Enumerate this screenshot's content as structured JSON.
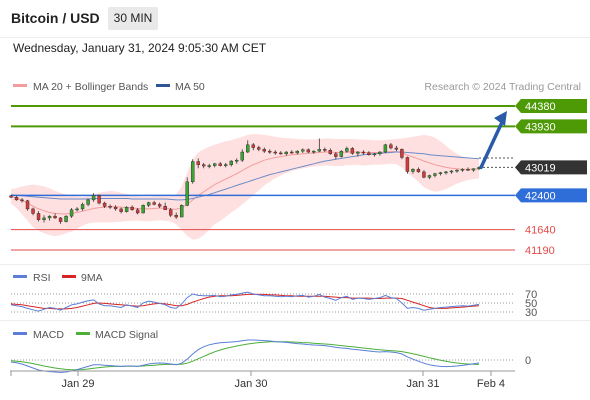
{
  "header": {
    "title": "Bitcoin / USD",
    "timeframe": "30 MIN",
    "datetime": "Wednesday, January 31, 2024 9:05:30 AM CET"
  },
  "legend": {
    "ma20": "MA 20 + Bollinger Bands",
    "ma50": "MA 50",
    "credit": "Research © 2024 Trading Central",
    "rsi": "RSI",
    "rsi_ma": "9MA",
    "macd": "MACD",
    "macd_signal": "MACD Signal"
  },
  "colors": {
    "resistance": "#4e9a06",
    "support": "#2f6ed8",
    "lower": "#e34a4a",
    "bb": "#ffd6d6",
    "ma20": "#f29c9c",
    "ma50": "#6b8cc8",
    "rsi": "#5b7fd6",
    "rsi_ma": "#d72424",
    "macd": "#5b7fd6",
    "macd_signal": "#4caf37",
    "current": "#333333",
    "arrow": "#2a5aa8"
  },
  "chart_data": [
    {
      "type": "candlestick",
      "x_ticks": [
        "Jan 29",
        "Jan 30",
        "Jan 31",
        "Feb 4"
      ],
      "ylim": [
        40960,
        44530
      ],
      "candles": [
        [
          42390,
          42410,
          42340,
          42360
        ],
        [
          42360,
          42390,
          42280,
          42300
        ],
        [
          42300,
          42340,
          42240,
          42280
        ],
        [
          42280,
          42300,
          42060,
          42100
        ],
        [
          42100,
          42130,
          41960,
          42000
        ],
        [
          42000,
          42050,
          41820,
          41860
        ],
        [
          41860,
          41960,
          41800,
          41900
        ],
        [
          41900,
          41960,
          41840,
          41940
        ],
        [
          41940,
          42000,
          41880,
          41900
        ],
        [
          41900,
          41920,
          41770,
          41820
        ],
        [
          41820,
          41960,
          41800,
          41940
        ],
        [
          41940,
          42120,
          41900,
          42080
        ],
        [
          42080,
          42140,
          42040,
          42100
        ],
        [
          42100,
          42240,
          42060,
          42200
        ],
        [
          42200,
          42330,
          42160,
          42300
        ],
        [
          42300,
          42450,
          42260,
          42400
        ],
        [
          42400,
          42420,
          42200,
          42230
        ],
        [
          42230,
          42260,
          42120,
          42160
        ],
        [
          42160,
          42200,
          42100,
          42140
        ],
        [
          42140,
          42180,
          42060,
          42100
        ],
        [
          42100,
          42130,
          42000,
          42040
        ],
        [
          42040,
          42160,
          42020,
          42140
        ],
        [
          42140,
          42180,
          42060,
          42080
        ],
        [
          42080,
          42120,
          41980,
          42010
        ],
        [
          42010,
          42200,
          42000,
          42180
        ],
        [
          42180,
          42260,
          42140,
          42240
        ],
        [
          42240,
          42280,
          42180,
          42200
        ],
        [
          42200,
          42240,
          42120,
          42160
        ],
        [
          42160,
          42240,
          42100,
          42080
        ],
        [
          42080,
          42120,
          41920,
          41960
        ],
        [
          41960,
          42020,
          41880,
          41920
        ],
        [
          41920,
          42200,
          41920,
          42180
        ],
        [
          42180,
          42800,
          42160,
          42700
        ],
        [
          42700,
          43200,
          42660,
          43150
        ],
        [
          43150,
          43220,
          43000,
          43080
        ],
        [
          43080,
          43120,
          43000,
          43050
        ],
        [
          43050,
          43100,
          43000,
          43060
        ],
        [
          43060,
          43120,
          43020,
          43100
        ],
        [
          43100,
          43140,
          43040,
          43060
        ],
        [
          43060,
          43120,
          43020,
          43080
        ],
        [
          43080,
          43180,
          43040,
          43160
        ],
        [
          43160,
          43220,
          43100,
          43180
        ],
        [
          43180,
          43420,
          43140,
          43360
        ],
        [
          43360,
          43620,
          43340,
          43520
        ],
        [
          43520,
          43560,
          43400,
          43460
        ],
        [
          43460,
          43500,
          43380,
          43420
        ],
        [
          43420,
          43460,
          43340,
          43380
        ],
        [
          43380,
          43420,
          43320,
          43360
        ],
        [
          43360,
          43400,
          43300,
          43340
        ],
        [
          43340,
          43380,
          43300,
          43320
        ],
        [
          43320,
          43380,
          43280,
          43360
        ],
        [
          43360,
          43400,
          43320,
          43340
        ],
        [
          43340,
          43400,
          43310,
          43380
        ],
        [
          43380,
          43440,
          43340,
          43410
        ],
        [
          43410,
          43440,
          43340,
          43360
        ],
        [
          43360,
          43400,
          43320,
          43380
        ],
        [
          43380,
          43660,
          43360,
          43420
        ],
        [
          43420,
          43460,
          43360,
          43400
        ],
        [
          43400,
          43440,
          43300,
          43320
        ],
        [
          43320,
          43360,
          43200,
          43260
        ],
        [
          43260,
          43400,
          43240,
          43380
        ],
        [
          43380,
          43480,
          43340,
          43440
        ],
        [
          43440,
          43470,
          43300,
          43330
        ],
        [
          43330,
          43380,
          43260,
          43360
        ],
        [
          43360,
          43400,
          43300,
          43340
        ],
        [
          43340,
          43380,
          43280,
          43300
        ],
        [
          43300,
          43340,
          43260,
          43320
        ],
        [
          43320,
          43380,
          43280,
          43360
        ],
        [
          43360,
          43540,
          43340,
          43520
        ],
        [
          43520,
          43560,
          43420,
          43450
        ],
        [
          43450,
          43500,
          43380,
          43420
        ],
        [
          43420,
          43440,
          43200,
          43240
        ],
        [
          43240,
          43260,
          42880,
          42930
        ],
        [
          42930,
          43000,
          42880,
          42980
        ],
        [
          42980,
          43020,
          42900,
          42920
        ],
        [
          42920,
          42960,
          42780,
          42800
        ],
        [
          42800,
          42860,
          42760,
          42840
        ],
        [
          42840,
          42900,
          42800,
          42880
        ],
        [
          42880,
          42920,
          42840,
          42900
        ],
        [
          42900,
          42940,
          42860,
          42920
        ],
        [
          42920,
          42960,
          42880,
          42940
        ],
        [
          42940,
          42980,
          42900,
          42960
        ],
        [
          42960,
          43000,
          42920,
          42980
        ],
        [
          42980,
          43020,
          42940,
          42960
        ],
        [
          42960,
          43000,
          42920,
          42990
        ],
        [
          42990,
          43040,
          42960,
          43019
        ]
      ],
      "ma20": [
        42380,
        42340,
        42290,
        42230,
        42160,
        42100,
        42060,
        42020,
        42000,
        41990,
        41990,
        42000,
        42020,
        42050,
        42080,
        42110,
        42130,
        42140,
        42150,
        42150,
        42140,
        42130,
        42120,
        42110,
        42100,
        42100,
        42110,
        42120,
        42110,
        42100,
        42090,
        42130,
        42200,
        42300,
        42400,
        42480,
        42560,
        42640,
        42700,
        42760,
        42820,
        42880,
        42950,
        43020,
        43080,
        43130,
        43180,
        43210,
        43240,
        43260,
        43280,
        43300,
        43310,
        43320,
        43330,
        43340,
        43350,
        43360,
        43360,
        43350,
        43350,
        43360,
        43360,
        43360,
        43350,
        43350,
        43350,
        43350,
        43360,
        43370,
        43370,
        43340,
        43290,
        43250,
        43210,
        43160,
        43120,
        43080,
        43050,
        43020,
        43000,
        42990,
        42980,
        42980,
        42980,
        42990
      ],
      "ma50": [
        42410,
        42400,
        42390,
        42380,
        42370,
        42360,
        42350,
        42340,
        42330,
        42320,
        42320,
        42320,
        42320,
        42320,
        42320,
        42330,
        42330,
        42330,
        42330,
        42330,
        42330,
        42330,
        42320,
        42320,
        42320,
        42320,
        42320,
        42320,
        42320,
        42310,
        42300,
        42300,
        42310,
        42330,
        42360,
        42390,
        42420,
        42460,
        42500,
        42540,
        42580,
        42620,
        42660,
        42700,
        42740,
        42780,
        42820,
        42860,
        42890,
        42920,
        42950,
        42980,
        43010,
        43040,
        43070,
        43100,
        43130,
        43160,
        43180,
        43200,
        43220,
        43240,
        43260,
        43280,
        43300,
        43310,
        43320,
        43330,
        43340,
        43350,
        43360,
        43360,
        43350,
        43340,
        43330,
        43320,
        43300,
        43290,
        43280,
        43270,
        43260,
        43250,
        43240,
        43230,
        43220,
        43210
      ],
      "bb_upper": [
        42540,
        42560,
        42600,
        42620,
        42640,
        42620,
        42600,
        42560,
        42500,
        42460,
        42420,
        42400,
        42380,
        42370,
        42380,
        42420,
        42460,
        42480,
        42500,
        42490,
        42460,
        42430,
        42400,
        42380,
        42370,
        42370,
        42380,
        42390,
        42380,
        42380,
        42420,
        42600,
        42900,
        43200,
        43350,
        43420,
        43480,
        43520,
        43560,
        43600,
        43620,
        43660,
        43700,
        43740,
        43760,
        43750,
        43740,
        43720,
        43700,
        43680,
        43670,
        43660,
        43650,
        43640,
        43640,
        43640,
        43650,
        43660,
        43660,
        43650,
        43650,
        43650,
        43650,
        43640,
        43640,
        43630,
        43620,
        43620,
        43630,
        43640,
        43650,
        43660,
        43680,
        43700,
        43720,
        43740,
        43720,
        43680,
        43600,
        43500,
        43400,
        43320,
        43260,
        43220,
        43200,
        43200
      ],
      "bb_lower": [
        42220,
        42120,
        41980,
        41840,
        41700,
        41620,
        41560,
        41520,
        41500,
        41520,
        41560,
        41600,
        41660,
        41730,
        41780,
        41800,
        41800,
        41800,
        41800,
        41810,
        41820,
        41830,
        41840,
        41840,
        41830,
        41830,
        41840,
        41850,
        41840,
        41820,
        41760,
        41640,
        41500,
        41420,
        41440,
        41520,
        41640,
        41760,
        41840,
        41920,
        42020,
        42100,
        42200,
        42300,
        42400,
        42510,
        42620,
        42700,
        42780,
        42840,
        42890,
        42940,
        42970,
        43000,
        43020,
        43040,
        43050,
        43060,
        43060,
        43050,
        43050,
        43070,
        43070,
        43080,
        43060,
        43070,
        43080,
        43080,
        43090,
        43100,
        43090,
        43020,
        42900,
        42800,
        42700,
        42580,
        42520,
        42480,
        42500,
        42540,
        42600,
        42660,
        42700,
        42740,
        42760,
        42780
      ],
      "forecast": {
        "from": 43019,
        "to": 44380
      },
      "levels": {
        "resistance": [
          44380,
          43930
        ],
        "support": [
          42400
        ],
        "lower": [
          41640,
          41190
        ],
        "current": 43019
      }
    },
    {
      "type": "line",
      "title": "RSI",
      "ylim": [
        20,
        80
      ],
      "reference": [
        70,
        50,
        30
      ],
      "rsi": [
        46,
        44,
        42,
        38,
        35,
        32,
        36,
        40,
        38,
        34,
        40,
        46,
        48,
        52,
        55,
        57,
        48,
        44,
        44,
        42,
        40,
        46,
        43,
        40,
        50,
        54,
        52,
        49,
        46,
        40,
        38,
        48,
        62,
        70,
        67,
        66,
        66,
        67,
        64,
        65,
        68,
        69,
        72,
        74,
        70,
        68,
        66,
        66,
        65,
        64,
        65,
        64,
        66,
        67,
        63,
        65,
        69,
        63,
        60,
        56,
        62,
        65,
        58,
        61,
        60,
        58,
        60,
        62,
        67,
        62,
        60,
        50,
        38,
        40,
        38,
        34,
        36,
        38,
        40,
        41,
        42,
        43,
        44,
        43,
        45,
        47
      ],
      "rsi_ma": [
        48,
        47,
        46,
        44,
        42,
        40,
        38,
        38,
        37,
        37,
        37,
        38,
        40,
        43,
        46,
        49,
        50,
        49,
        48,
        47,
        46,
        45,
        44,
        43,
        44,
        46,
        48,
        49,
        48,
        46,
        44,
        44,
        47,
        52,
        56,
        60,
        63,
        65,
        66,
        66,
        66,
        67,
        68,
        69,
        69,
        69,
        69,
        68,
        68,
        67,
        66,
        66,
        65,
        65,
        65,
        65,
        65,
        65,
        64,
        63,
        62,
        62,
        61,
        61,
        61,
        61,
        60,
        60,
        61,
        61,
        61,
        60,
        56,
        52,
        48,
        44,
        40,
        38,
        38,
        38,
        39,
        40,
        41,
        42,
        43,
        44
      ]
    },
    {
      "type": "line",
      "title": "MACD",
      "ylim": [
        -120,
        130
      ],
      "reference": [
        0
      ],
      "macd": [
        -10,
        -14,
        -20,
        -30,
        -40,
        -50,
        -55,
        -58,
        -60,
        -62,
        -60,
        -55,
        -48,
        -40,
        -32,
        -24,
        -24,
        -26,
        -28,
        -30,
        -32,
        -30,
        -30,
        -32,
        -26,
        -20,
        -16,
        -15,
        -16,
        -20,
        -24,
        -16,
        4,
        30,
        52,
        66,
        76,
        82,
        86,
        88,
        90,
        92,
        96,
        100,
        100,
        99,
        97,
        95,
        92,
        90,
        88,
        85,
        82,
        80,
        77,
        75,
        74,
        72,
        68,
        63,
        60,
        58,
        54,
        51,
        48,
        45,
        42,
        40,
        42,
        40,
        37,
        30,
        16,
        4,
        -6,
        -16,
        -24,
        -29,
        -32,
        -33,
        -32,
        -30,
        -27,
        -23,
        -19,
        -15
      ],
      "macd_signal": [
        -4,
        -6,
        -9,
        -13,
        -18,
        -24,
        -30,
        -35,
        -40,
        -44,
        -47,
        -49,
        -49,
        -48,
        -45,
        -41,
        -38,
        -35,
        -33,
        -32,
        -32,
        -31,
        -31,
        -31,
        -30,
        -28,
        -26,
        -24,
        -22,
        -22,
        -22,
        -21,
        -16,
        -6,
        6,
        18,
        30,
        41,
        50,
        58,
        64,
        70,
        75,
        80,
        84,
        87,
        89,
        91,
        91,
        91,
        91,
        90,
        89,
        87,
        86,
        84,
        82,
        80,
        78,
        75,
        72,
        69,
        66,
        63,
        60,
        57,
        54,
        51,
        49,
        47,
        45,
        42,
        37,
        31,
        25,
        18,
        11,
        5,
        -1,
        -6,
        -11,
        -15,
        -18,
        -20,
        -21,
        -22
      ]
    }
  ]
}
